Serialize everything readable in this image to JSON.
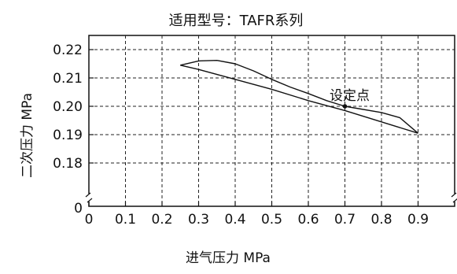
{
  "chart_data": {
    "type": "line",
    "title": "适用型号：TAFR系列",
    "xlabel": "进气压力  MPa",
    "ylabel": "二次压力  MPa",
    "xlim": [
      0,
      1.0
    ],
    "ylim": [
      0.17,
      0.225
    ],
    "y_axis_break": true,
    "x_ticks": [
      0,
      0.1,
      0.2,
      0.3,
      0.4,
      0.5,
      0.6,
      0.7,
      0.8,
      0.9
    ],
    "x_tick_labels": [
      "0",
      "0.1",
      "0.2",
      "0.3",
      "0.4",
      "0.5",
      "0.6",
      "0.7",
      "0.8",
      "0.9"
    ],
    "y_ticks": [
      0.18,
      0.19,
      0.2,
      0.21,
      0.22
    ],
    "y_tick_labels": [
      "0.18",
      "0.19",
      "0.20",
      "0.21",
      "0.22"
    ],
    "y_origin_label": "0",
    "grid": "dashed",
    "series": [
      {
        "values": [
          [
            0.25,
            0.2145
          ],
          [
            0.3,
            0.216
          ],
          [
            0.35,
            0.2162
          ],
          [
            0.4,
            0.215
          ],
          [
            0.45,
            0.2125
          ],
          [
            0.5,
            0.2095
          ],
          [
            0.55,
            0.2068
          ],
          [
            0.6,
            0.2045
          ],
          [
            0.65,
            0.202
          ],
          [
            0.7,
            0.2
          ],
          [
            0.8,
            0.1978
          ],
          [
            0.85,
            0.196
          ],
          [
            0.9,
            0.1905
          ]
        ],
        "color": "#111111"
      },
      {
        "values": [
          [
            0.25,
            0.2145
          ],
          [
            0.3,
            0.213
          ],
          [
            0.4,
            0.2095
          ],
          [
            0.5,
            0.206
          ],
          [
            0.6,
            0.202
          ],
          [
            0.7,
            0.1985
          ],
          [
            0.8,
            0.1945
          ],
          [
            0.9,
            0.1905
          ]
        ],
        "color": "#111111"
      }
    ],
    "annotations": [
      {
        "text": "设定点",
        "x": 0.7,
        "y": 0.2,
        "marker": true
      }
    ]
  }
}
